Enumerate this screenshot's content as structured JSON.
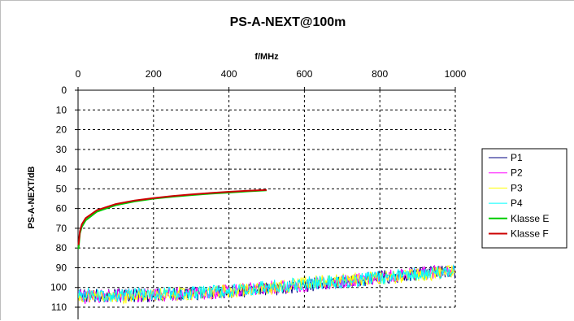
{
  "chart_data": {
    "type": "line",
    "title": "PS-A-NEXT@100m",
    "xlabel": "f/MHz",
    "ylabel": "PS-A-NEXT/dB",
    "xlim": [
      0,
      1000
    ],
    "ylim": [
      0,
      110
    ],
    "y_inverted": true,
    "x_axis_position": "top",
    "x_ticks": [
      "0",
      "200",
      "400",
      "600",
      "800",
      "1000"
    ],
    "y_ticks": [
      "0",
      "10",
      "20",
      "30",
      "40",
      "50",
      "60",
      "70",
      "80",
      "90",
      "100",
      "110"
    ],
    "grid": true,
    "legend_position": "right",
    "series": [
      {
        "name": "P1",
        "color": "#000080",
        "x": [
          1,
          100,
          200,
          300,
          400,
          500,
          600,
          700,
          800,
          900,
          1000
        ],
        "y": [
          104,
          104,
          104,
          103,
          102,
          101,
          99,
          97,
          95,
          93,
          92
        ]
      },
      {
        "name": "P2",
        "color": "#ff00ff",
        "x": [
          1,
          100,
          200,
          300,
          400,
          500,
          600,
          700,
          800,
          900,
          1000
        ],
        "y": [
          105,
          104,
          104,
          103,
          102,
          100,
          99,
          97,
          95,
          93,
          91
        ]
      },
      {
        "name": "P3",
        "color": "#ffff00",
        "x": [
          1,
          100,
          200,
          300,
          400,
          500,
          600,
          700,
          800,
          900,
          1000
        ],
        "y": [
          104,
          105,
          104,
          103,
          102,
          101,
          98,
          96,
          95,
          94,
          92
        ]
      },
      {
        "name": "P4",
        "color": "#00ffff",
        "x": [
          1,
          100,
          200,
          300,
          400,
          500,
          600,
          700,
          800,
          900,
          1000
        ],
        "y": [
          104,
          104,
          103,
          103,
          102,
          100,
          98,
          97,
          95,
          93,
          92
        ]
      },
      {
        "name": "Klasse E",
        "color": "#00cc00",
        "x": [
          1,
          5,
          10,
          20,
          50,
          100,
          150,
          200,
          250,
          300,
          350,
          400,
          450,
          500
        ],
        "y": [
          80.5,
          72.6,
          69.3,
          66.0,
          61.6,
          58.3,
          56.4,
          55.0,
          54.0,
          53.2,
          52.5,
          51.9,
          51.3,
          50.8
        ]
      },
      {
        "name": "Klasse F",
        "color": "#cc0000",
        "x": [
          1,
          5,
          10,
          20,
          50,
          100,
          150,
          200,
          250,
          300,
          350,
          400,
          450,
          500
        ],
        "y": [
          78.5,
          71.5,
          68.0,
          64.9,
          60.8,
          57.7,
          55.9,
          54.7,
          53.7,
          52.8,
          52.1,
          51.5,
          51.0,
          50.6
        ]
      }
    ]
  }
}
